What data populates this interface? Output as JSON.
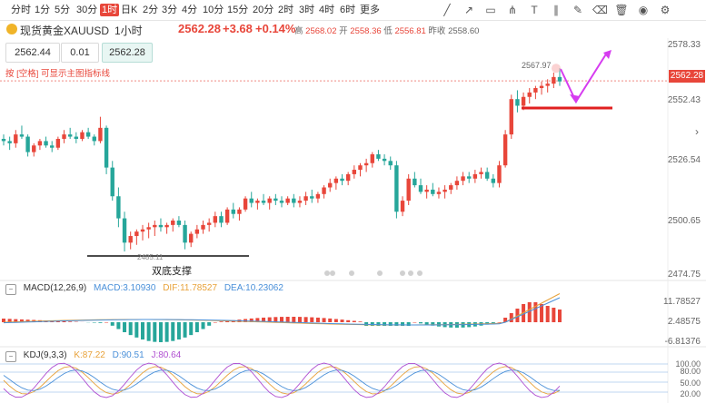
{
  "toolbar": {
    "timeframes": [
      "分时",
      "1分",
      "5分",
      "30分",
      "1时",
      "日K",
      "2分",
      "3分",
      "4分",
      "10分",
      "15分",
      "20分",
      "2时",
      "3时",
      "4时",
      "6时",
      "更多"
    ],
    "active_index": 4,
    "tools": [
      "line-draw-icon",
      "ray-icon",
      "rect-icon",
      "pitchfork-icon",
      "text-tool-icon",
      "parallel-icon",
      "brush-icon",
      "eraser-icon",
      "trash-icon",
      "eye-icon",
      "settings-icon"
    ]
  },
  "header": {
    "instrument": "现货黄金XAUUSD",
    "period": "1小时",
    "price": "2562.28",
    "change": "+3.68",
    "percent": "+0.14%",
    "high_label": "高",
    "high": "2568.02",
    "open_label": "开",
    "open": "2558.36",
    "low_label": "低",
    "low": "2556.81",
    "prev_label": "昨收",
    "prev": "2558.60"
  },
  "order": {
    "sell": "2562.44",
    "lot": "0.01",
    "buy": "2562.28"
  },
  "hint": "按 [空格] 可显示主图指标线",
  "price_axis": [
    "2578.33",
    "2552.43",
    "2526.54",
    "2500.65",
    "2474.75"
  ],
  "current_price_tag": "2562.28",
  "annotations": {
    "high_mark": "2567.97",
    "low_mark": "2485.11",
    "support": "双底支撑"
  },
  "macd": {
    "name": "MACD(12,26,9)",
    "macd_label": "MACD:3.10930",
    "dif_label": "DIF:11.78527",
    "dea_label": "DEA:10.23062",
    "axis": [
      "11.78527",
      "2.48575",
      "-6.81376"
    ]
  },
  "kdj": {
    "name": "KDJ(9,3,3)",
    "k_label": "K:87.22",
    "d_label": "D:90.51",
    "j_label": "J:80.64",
    "axis": [
      "100.00",
      "80.00",
      "50.00",
      "20.00"
    ]
  },
  "colors": {
    "up": "#e8463a",
    "down": "#26a69a",
    "accent": "#d63cf0"
  },
  "chart_data": {
    "type": "candlestick",
    "series": [
      {
        "name": "OHLC",
        "values": [
          [
            2536,
            2538,
            2533,
            2535
          ],
          [
            2535,
            2537,
            2531,
            2534
          ],
          [
            2534,
            2540,
            2532,
            2538
          ],
          [
            2538,
            2542,
            2536,
            2537
          ],
          [
            2537,
            2538,
            2528,
            2530
          ],
          [
            2530,
            2534,
            2528,
            2533
          ],
          [
            2533,
            2536,
            2531,
            2535
          ],
          [
            2535,
            2537,
            2532,
            2533
          ],
          [
            2533,
            2535,
            2530,
            2532
          ],
          [
            2532,
            2537,
            2531,
            2536
          ],
          [
            2536,
            2540,
            2534,
            2538
          ],
          [
            2538,
            2541,
            2536,
            2537
          ],
          [
            2537,
            2539,
            2534,
            2536
          ],
          [
            2536,
            2540,
            2535,
            2539
          ],
          [
            2539,
            2541,
            2536,
            2537
          ],
          [
            2537,
            2538,
            2533,
            2535
          ],
          [
            2535,
            2546,
            2534,
            2541
          ],
          [
            2541,
            2542,
            2520,
            2523
          ],
          [
            2523,
            2526,
            2508,
            2510
          ],
          [
            2510,
            2514,
            2496,
            2500
          ],
          [
            2500,
            2503,
            2485,
            2489
          ],
          [
            2489,
            2494,
            2486,
            2492
          ],
          [
            2492,
            2495,
            2488,
            2494
          ],
          [
            2494,
            2497,
            2490,
            2495
          ],
          [
            2495,
            2498,
            2491,
            2496
          ],
          [
            2496,
            2499,
            2492,
            2497
          ],
          [
            2497,
            2500,
            2494,
            2496
          ],
          [
            2496,
            2498,
            2493,
            2497
          ],
          [
            2497,
            2500,
            2494,
            2499
          ],
          [
            2499,
            2501,
            2496,
            2497
          ],
          [
            2497,
            2499,
            2486,
            2489
          ],
          [
            2489,
            2494,
            2487,
            2493
          ],
          [
            2493,
            2497,
            2491,
            2495
          ],
          [
            2495,
            2499,
            2493,
            2497
          ],
          [
            2497,
            2500,
            2494,
            2498
          ],
          [
            2498,
            2503,
            2496,
            2501
          ],
          [
            2501,
            2503,
            2496,
            2498
          ],
          [
            2498,
            2505,
            2497,
            2504
          ],
          [
            2504,
            2507,
            2500,
            2502
          ],
          [
            2502,
            2505,
            2499,
            2504
          ],
          [
            2504,
            2510,
            2503,
            2509
          ],
          [
            2509,
            2512,
            2505,
            2507
          ],
          [
            2507,
            2509,
            2504,
            2508
          ],
          [
            2508,
            2511,
            2506,
            2507
          ],
          [
            2507,
            2510,
            2504,
            2509
          ],
          [
            2509,
            2511,
            2506,
            2508
          ],
          [
            2508,
            2510,
            2505,
            2507
          ],
          [
            2507,
            2510,
            2506,
            2509
          ],
          [
            2509,
            2511,
            2505,
            2507
          ],
          [
            2507,
            2510,
            2505,
            2508
          ],
          [
            2508,
            2512,
            2506,
            2510
          ],
          [
            2510,
            2513,
            2507,
            2509
          ],
          [
            2509,
            2512,
            2507,
            2511
          ],
          [
            2511,
            2515,
            2509,
            2514
          ],
          [
            2514,
            2518,
            2512,
            2516
          ],
          [
            2516,
            2519,
            2513,
            2518
          ],
          [
            2518,
            2520,
            2515,
            2517
          ],
          [
            2517,
            2521,
            2515,
            2520
          ],
          [
            2520,
            2524,
            2518,
            2522
          ],
          [
            2522,
            2525,
            2519,
            2524
          ],
          [
            2524,
            2527,
            2521,
            2525
          ],
          [
            2525,
            2530,
            2523,
            2529
          ],
          [
            2529,
            2531,
            2526,
            2527
          ],
          [
            2527,
            2529,
            2524,
            2526
          ],
          [
            2526,
            2528,
            2522,
            2524
          ],
          [
            2524,
            2526,
            2500,
            2503
          ],
          [
            2503,
            2510,
            2501,
            2508
          ],
          [
            2508,
            2520,
            2506,
            2518
          ],
          [
            2518,
            2521,
            2514,
            2515
          ],
          [
            2515,
            2518,
            2511,
            2512
          ],
          [
            2512,
            2515,
            2509,
            2513
          ],
          [
            2513,
            2516,
            2510,
            2511
          ],
          [
            2511,
            2514,
            2509,
            2512
          ],
          [
            2512,
            2515,
            2509,
            2513
          ],
          [
            2513,
            2516,
            2511,
            2515
          ],
          [
            2515,
            2519,
            2513,
            2517
          ],
          [
            2517,
            2521,
            2515,
            2519
          ],
          [
            2519,
            2521,
            2516,
            2518
          ],
          [
            2518,
            2522,
            2516,
            2520
          ],
          [
            2520,
            2523,
            2518,
            2521
          ],
          [
            2521,
            2523,
            2517,
            2518
          ],
          [
            2518,
            2520,
            2514,
            2516
          ],
          [
            2516,
            2526,
            2514,
            2524
          ],
          [
            2524,
            2540,
            2523,
            2538
          ],
          [
            2538,
            2556,
            2536,
            2554
          ],
          [
            2554,
            2558,
            2548,
            2551
          ],
          [
            2551,
            2557,
            2549,
            2555
          ],
          [
            2555,
            2559,
            2552,
            2557
          ],
          [
            2557,
            2560,
            2554,
            2559
          ],
          [
            2559,
            2562,
            2556,
            2560
          ],
          [
            2560,
            2563,
            2557,
            2561
          ],
          [
            2561,
            2566,
            2559,
            2564
          ],
          [
            2564,
            2568,
            2560,
            2562
          ]
        ]
      }
    ],
    "ylim": [
      2474.75,
      2578.33
    ]
  }
}
